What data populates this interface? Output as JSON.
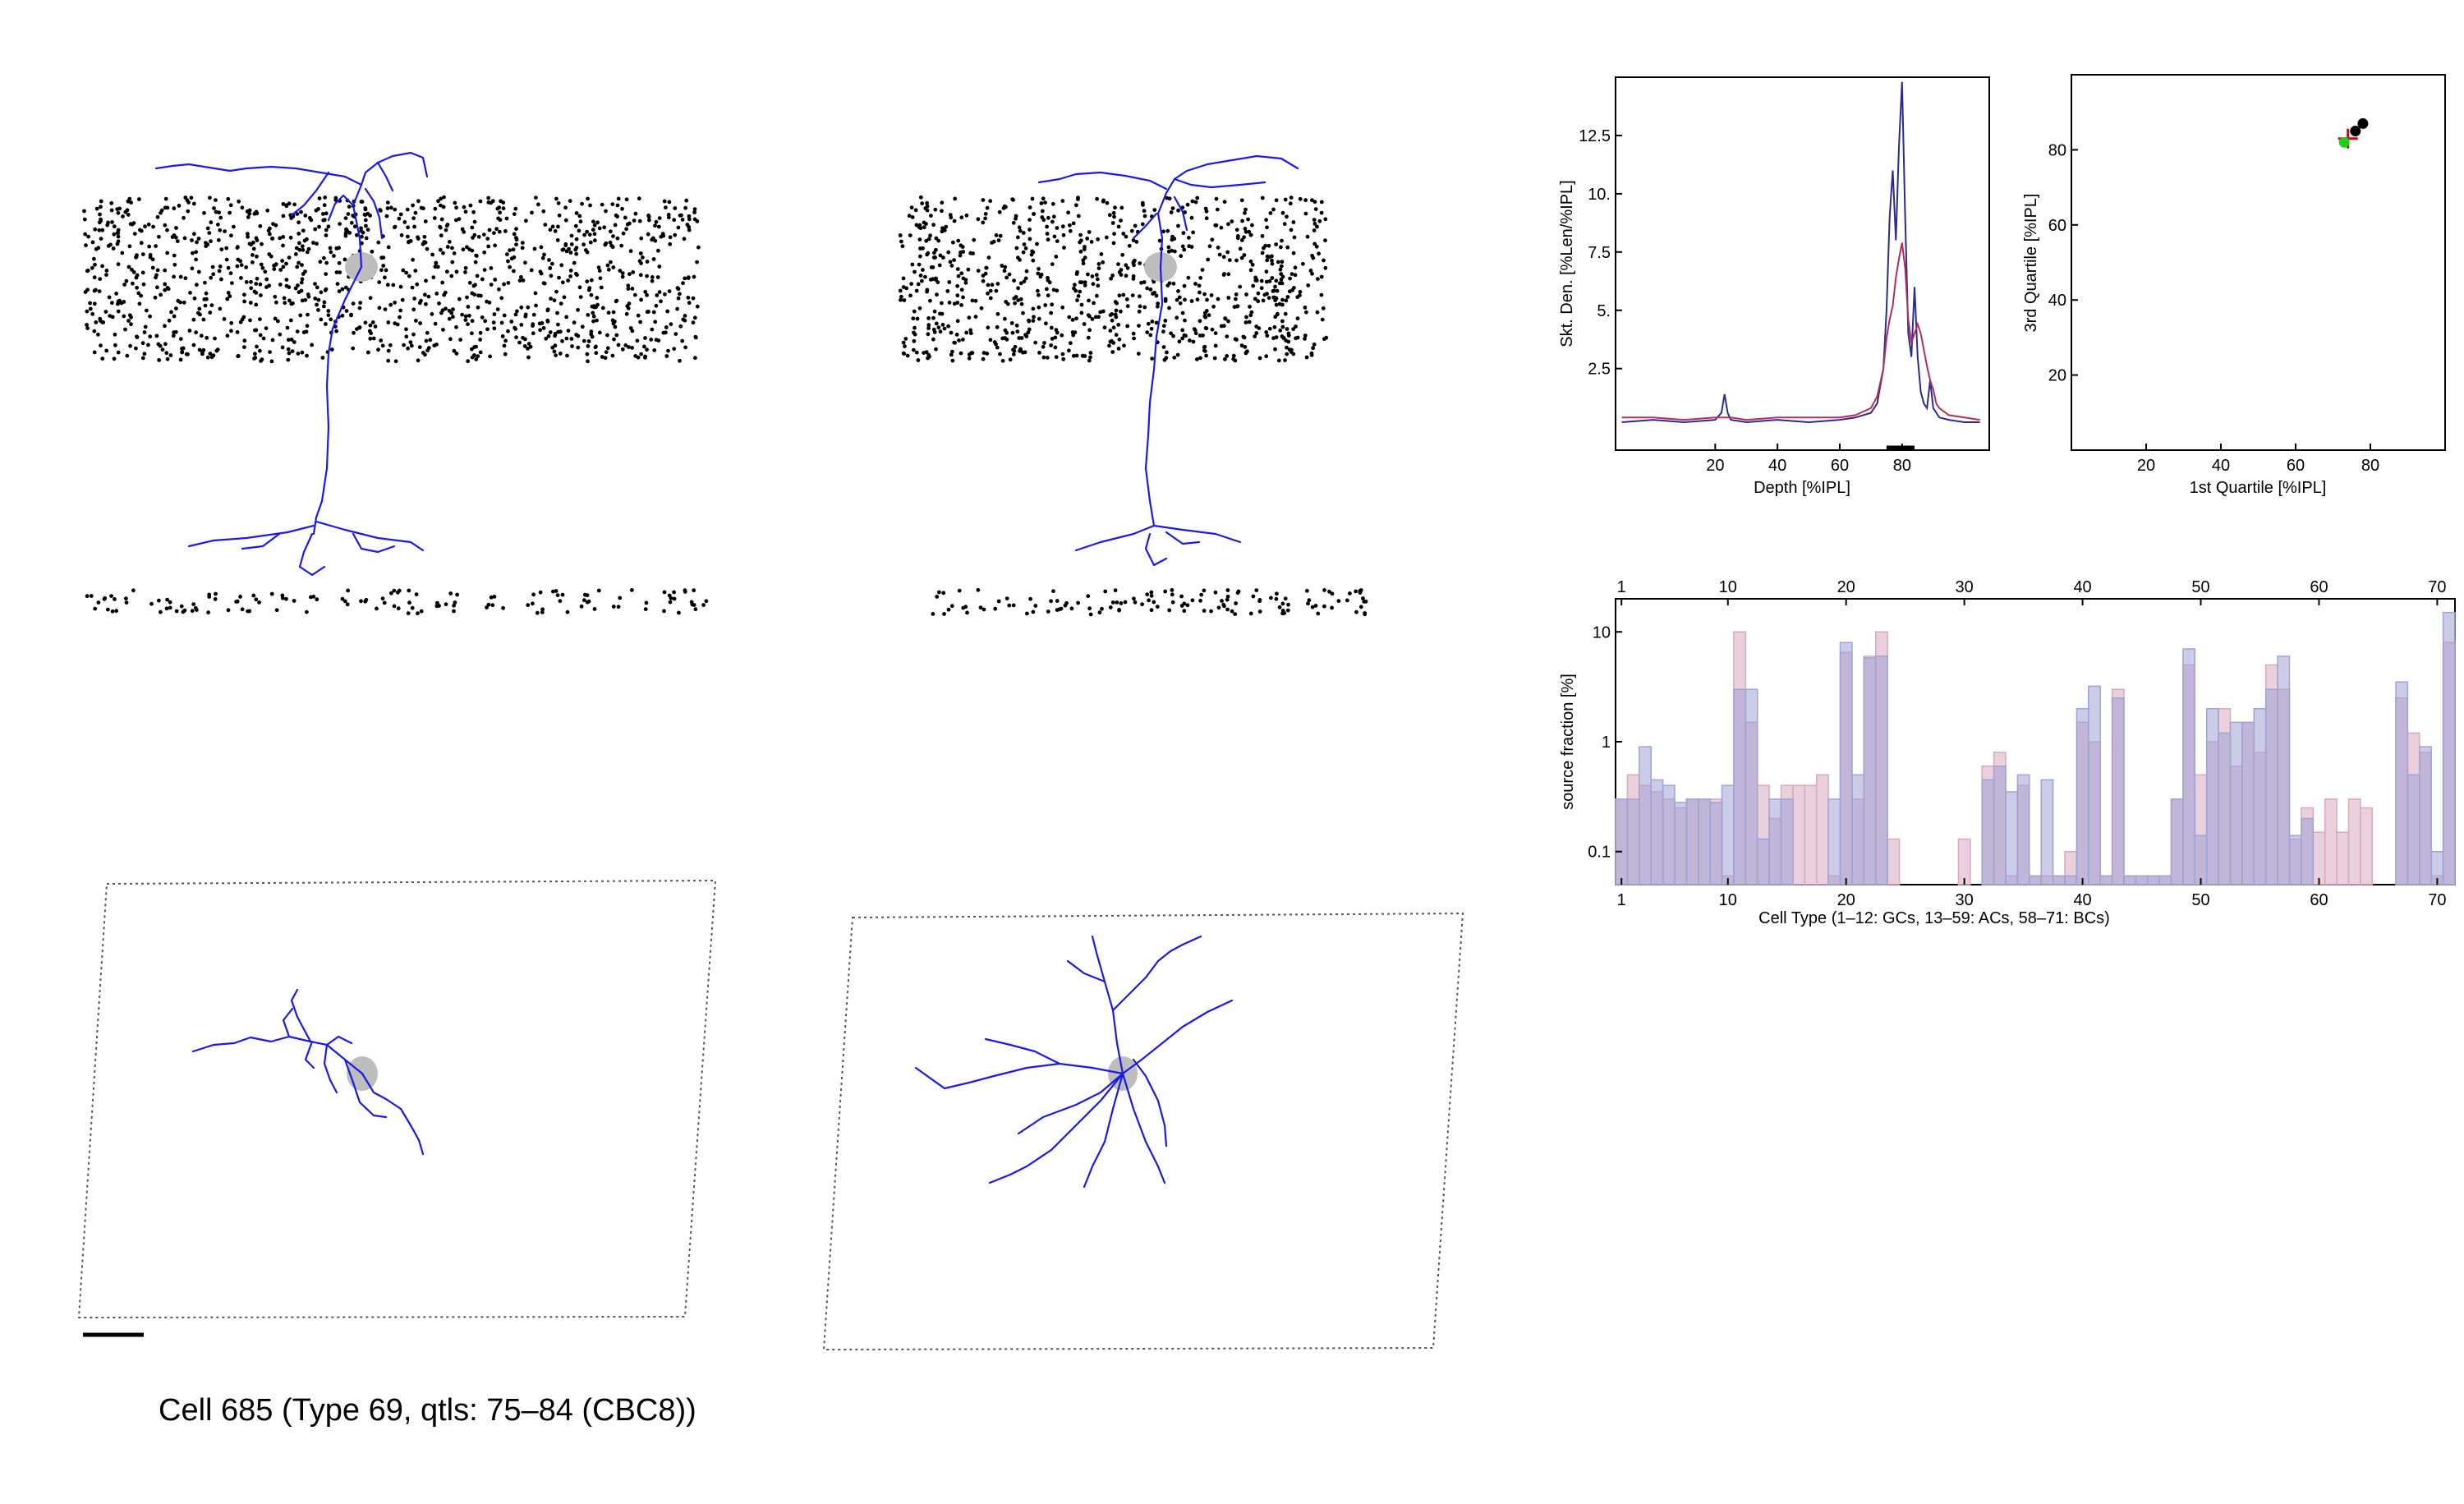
{
  "caption": "Cell 685 (Type 69, qtls: 75–84 (CBC8))",
  "colors": {
    "dendrite": "#1a1ae6",
    "soma": "#bdbdbd",
    "points": "#000000",
    "series_a": "#2b2b8f",
    "series_b": "#b0305a",
    "hist_a": "#9fa3d6",
    "hist_b": "#d9a7bf"
  },
  "panels": {
    "side_view_1": {
      "label": "",
      "contains": [
        "points",
        "dendrite",
        "soma"
      ]
    },
    "side_view_2": {
      "label": "",
      "contains": [
        "points",
        "dendrite",
        "soma"
      ]
    },
    "top_view_1": {
      "label": "",
      "contains": [
        "frame",
        "dendrite",
        "soma",
        "scale-bar"
      ]
    },
    "top_view_2": {
      "label": "",
      "contains": [
        "frame",
        "dendrite",
        "soma"
      ]
    }
  },
  "chart_data": [
    {
      "id": "density",
      "type": "line",
      "xlabel": "Depth [%IPL]",
      "ylabel": "Skt. Den. [%Len/%IPL]",
      "xlim": [
        -12,
        108
      ],
      "ylim": [
        -1,
        15
      ],
      "xticks": [
        "20",
        "40",
        "60",
        "80"
      ],
      "yticks": [
        "2.5",
        "5.",
        "7.5",
        "10.",
        "12.5"
      ],
      "annotation": {
        "type": "range-bar",
        "x": [
          75,
          84
        ]
      },
      "series": [
        {
          "color": "#2b2b8f",
          "x": [
            -10,
            0,
            10,
            20,
            22,
            23,
            24,
            25,
            30,
            40,
            50,
            60,
            65,
            70,
            72,
            74,
            75,
            76,
            77,
            78,
            79,
            80,
            81,
            82,
            83,
            84,
            85,
            86,
            87,
            88,
            89,
            90,
            92,
            95,
            100,
            105
          ],
          "y": [
            0.2,
            0.3,
            0.2,
            0.3,
            0.6,
            1.4,
            0.6,
            0.3,
            0.2,
            0.3,
            0.2,
            0.3,
            0.4,
            0.6,
            1.0,
            2.5,
            5.0,
            9.0,
            11.0,
            8.0,
            12.0,
            14.8,
            9.0,
            4.0,
            3.0,
            6.0,
            3.0,
            1.5,
            1.0,
            0.8,
            2.0,
            0.8,
            0.4,
            0.3,
            0.2,
            0.2
          ]
        },
        {
          "color": "#b0305a",
          "x": [
            -10,
            0,
            10,
            20,
            25,
            30,
            40,
            50,
            60,
            65,
            70,
            72,
            74,
            75,
            76,
            77,
            78,
            79,
            80,
            81,
            82,
            83,
            84,
            85,
            86,
            87,
            88,
            89,
            90,
            91,
            92,
            95,
            100,
            105
          ],
          "y": [
            0.4,
            0.4,
            0.3,
            0.4,
            0.4,
            0.3,
            0.4,
            0.4,
            0.4,
            0.5,
            0.8,
            1.3,
            2.5,
            3.8,
            4.6,
            5.2,
            6.4,
            7.2,
            7.9,
            6.8,
            4.6,
            3.6,
            4.0,
            4.4,
            4.0,
            3.3,
            2.6,
            2.0,
            1.6,
            1.0,
            0.8,
            0.5,
            0.4,
            0.3
          ]
        }
      ]
    },
    {
      "id": "quartiles",
      "type": "scatter",
      "xlabel": "1st Quartile [%IPL]",
      "ylabel": "3rd Quartile [%IPL]",
      "xlim": [
        0,
        100
      ],
      "ylim": [
        0,
        100
      ],
      "xticks": [
        20,
        40,
        60,
        80
      ],
      "yticks": [
        20,
        40,
        60,
        80
      ],
      "points": [
        {
          "x": 78,
          "y": 87,
          "color": "#000000"
        },
        {
          "x": 76,
          "y": 85,
          "color": "#000000"
        },
        {
          "x": 74,
          "y": 83,
          "color": "#e00000",
          "marker": "cross"
        },
        {
          "x": 73,
          "y": 82,
          "color": "#22cc22"
        }
      ]
    },
    {
      "id": "source_fraction",
      "type": "bar",
      "xlabel": "Cell Type (1–12: GCs, 13–59: ACs, 58–71: BCs)",
      "ylabel": "source fraction [%]",
      "log_y": true,
      "ylim": [
        0.05,
        20
      ],
      "yticks": [
        "0.1",
        "1",
        "10"
      ],
      "xticks": [
        "1",
        "10",
        "20",
        "30",
        "40",
        "50",
        "60",
        "70"
      ],
      "categories": [
        1,
        2,
        3,
        4,
        5,
        6,
        7,
        8,
        9,
        10,
        11,
        12,
        13,
        14,
        15,
        16,
        17,
        18,
        19,
        20,
        21,
        22,
        23,
        24,
        25,
        26,
        27,
        28,
        29,
        30,
        31,
        32,
        33,
        34,
        35,
        36,
        37,
        38,
        39,
        40,
        41,
        42,
        43,
        44,
        45,
        46,
        47,
        48,
        49,
        50,
        51,
        52,
        53,
        54,
        55,
        56,
        57,
        58,
        59,
        60,
        61,
        62,
        63,
        64,
        65,
        66,
        67,
        68,
        69,
        70,
        71
      ],
      "series": [
        {
          "color": "#9fa3d6",
          "values": [
            0.3,
            0.3,
            0.9,
            0.45,
            0.4,
            0.28,
            0.3,
            0.3,
            0.28,
            0.4,
            3.0,
            3.0,
            0.13,
            0.3,
            0.3,
            null,
            null,
            null,
            0.3,
            8.0,
            0.5,
            5.8,
            6.0,
            null,
            null,
            null,
            null,
            null,
            null,
            null,
            null,
            0.45,
            0.6,
            0.35,
            0.5,
            0.06,
            0.45,
            0.06,
            0.06,
            2.0,
            3.2,
            0.06,
            2.5,
            0.06,
            0.06,
            0.06,
            0.06,
            0.3,
            7.0,
            0.14,
            2.0,
            1.2,
            1.5,
            1.5,
            2.0,
            3.0,
            6.0,
            0.14,
            0.2,
            null,
            null,
            null,
            null,
            null,
            null,
            null,
            3.5,
            0.5,
            0.9,
            0.1,
            15.0
          ]
        },
        {
          "color": "#d9a7bf",
          "values": [
            0.3,
            0.5,
            0.4,
            0.35,
            0.3,
            0.25,
            0.3,
            0.3,
            0.3,
            0.06,
            10.0,
            1.5,
            0.4,
            0.2,
            0.4,
            0.4,
            0.4,
            0.5,
            0.06,
            6.5,
            0.3,
            6.0,
            10.0,
            0.13,
            null,
            null,
            null,
            null,
            null,
            0.13,
            null,
            0.6,
            0.8,
            0.06,
            0.4,
            0.06,
            0.06,
            0.06,
            0.1,
            1.5,
            1.0,
            0.06,
            3.0,
            0.06,
            0.06,
            0.06,
            0.06,
            0.3,
            5.0,
            0.5,
            1.0,
            2.0,
            0.6,
            1.5,
            0.8,
            5.0,
            3.0,
            0.13,
            0.25,
            0.15,
            0.3,
            0.15,
            0.3,
            0.25,
            null,
            null,
            2.5,
            1.2,
            0.8,
            0.06,
            8.0
          ]
        }
      ]
    }
  ]
}
